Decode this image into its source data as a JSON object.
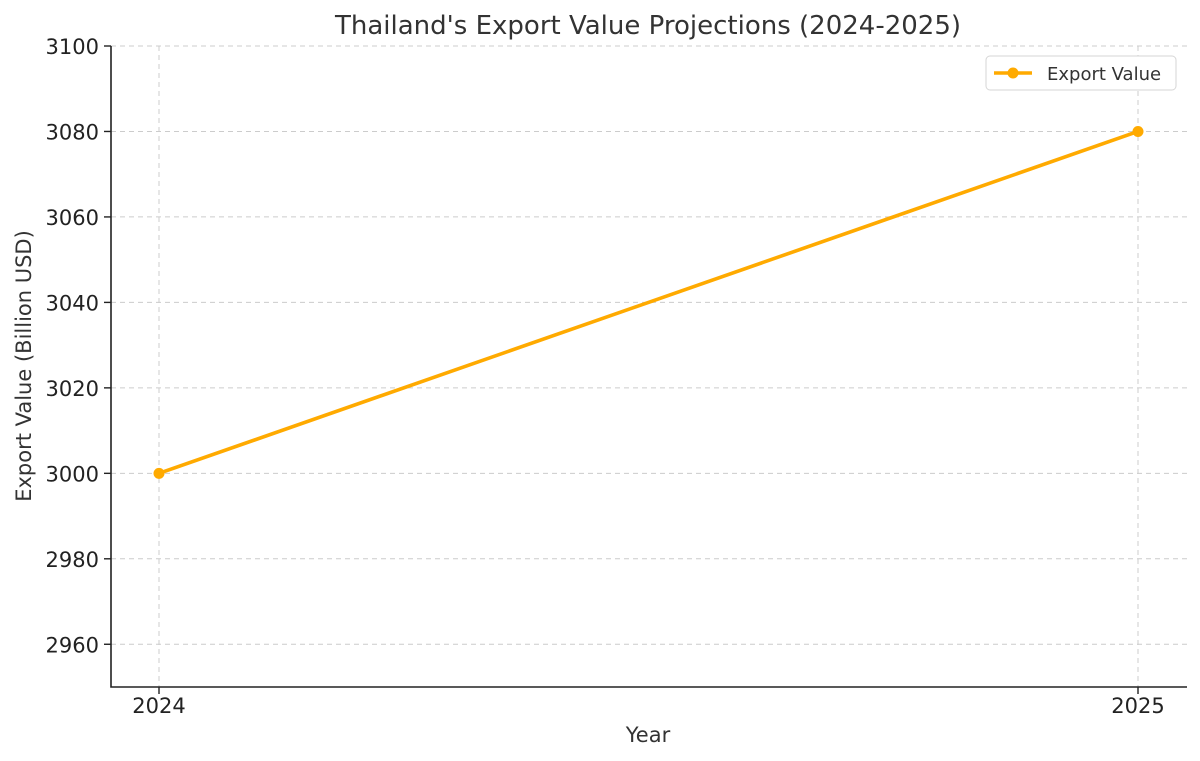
{
  "chart_data": {
    "type": "line",
    "title": "Thailand's Export Value Projections (2024-2025)",
    "xlabel": "Year",
    "ylabel": "Export Value (Billion USD)",
    "x": [
      "2024",
      "2025"
    ],
    "series": [
      {
        "name": "Export Value",
        "values": [
          3000,
          3080
        ],
        "color": "#FFAA00",
        "marker": "circle"
      }
    ],
    "ylim": [
      2950,
      3100
    ],
    "yticks": [
      2960,
      2980,
      3000,
      3020,
      3040,
      3060,
      3080,
      3100
    ],
    "grid": true,
    "legend_position": "top-right"
  }
}
